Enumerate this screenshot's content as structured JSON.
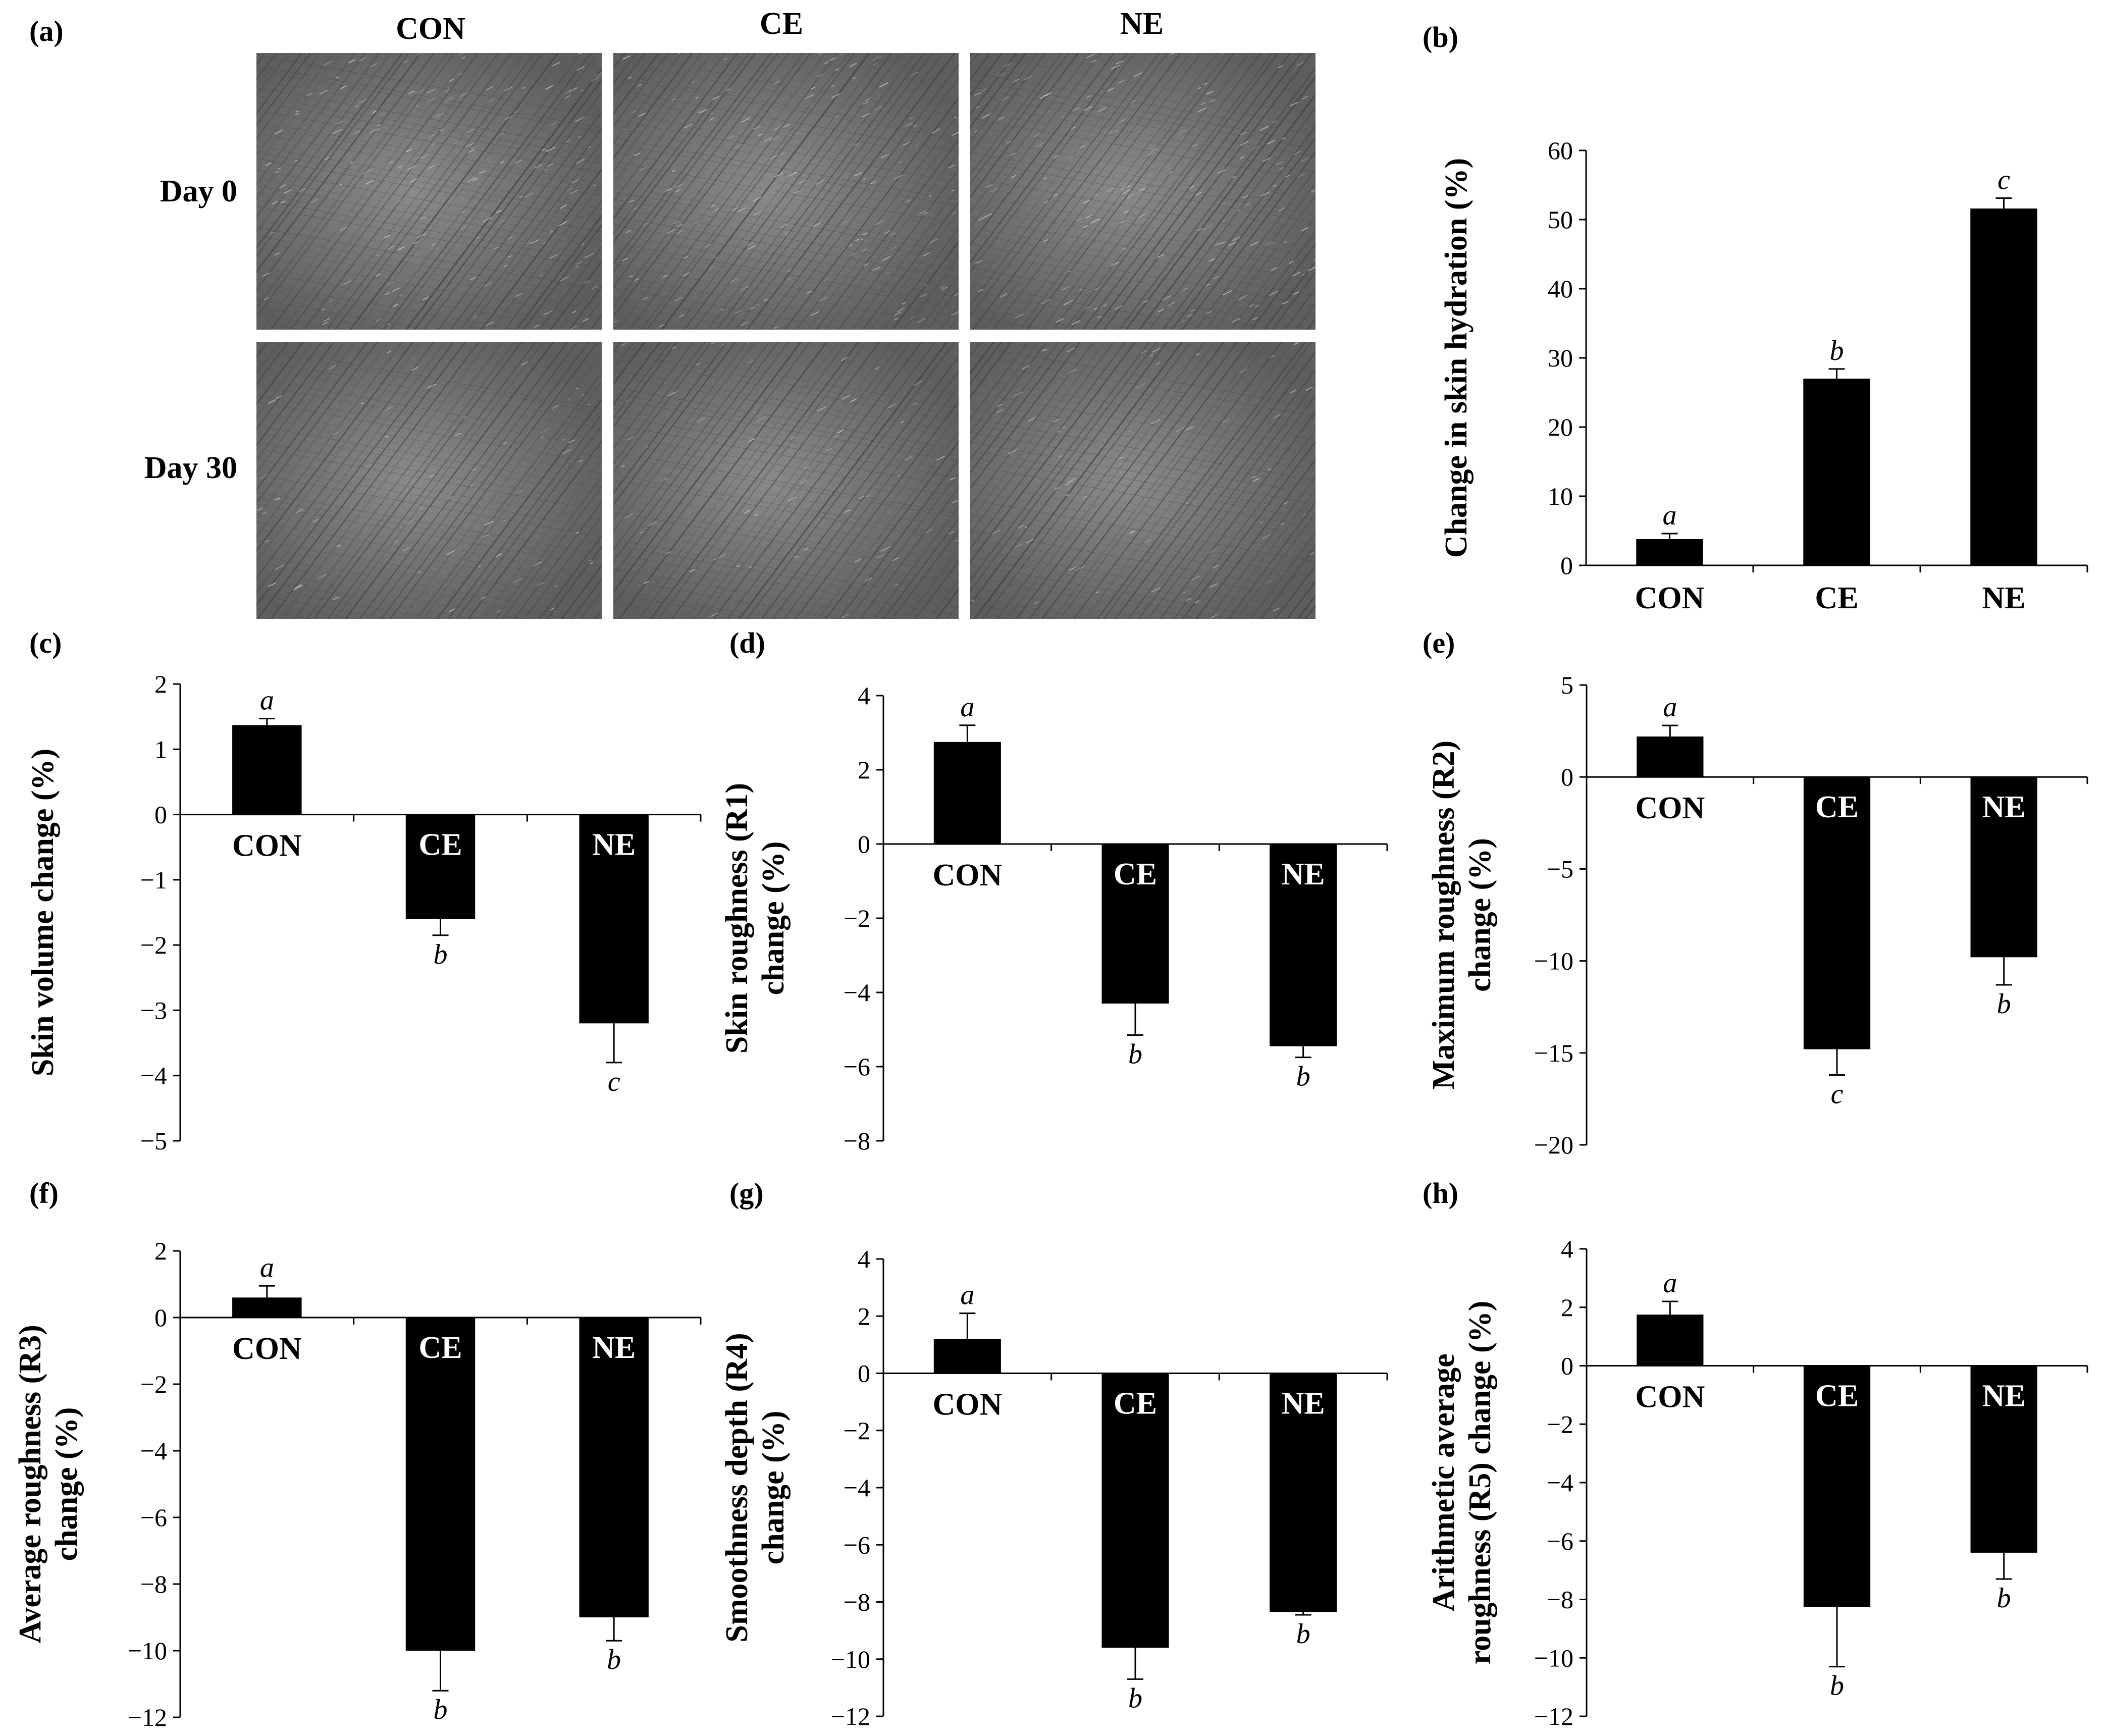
{
  "panel_a": {
    "letter": "(a)",
    "columns": [
      "CON",
      "CE",
      "NE"
    ],
    "rows": [
      "Day 0",
      "Day 30"
    ],
    "image_tone": "#6e6e6e"
  },
  "chart_data": [
    {
      "id": "b",
      "letter": "(b)",
      "type": "bar",
      "categories": [
        "CON",
        "CE",
        "NE"
      ],
      "values": [
        3.8,
        27,
        51.6
      ],
      "errors": [
        0.8,
        1.4,
        1.5
      ],
      "significance": [
        "a",
        "b",
        "c"
      ],
      "ylabel": [
        "Change in skin hydration (%)"
      ],
      "ylim": [
        0,
        60
      ],
      "yticks": [
        0,
        10,
        20,
        30,
        40,
        50,
        60
      ],
      "bar_color": "#000000"
    },
    {
      "id": "c",
      "letter": "(c)",
      "type": "bar",
      "categories": [
        "CON",
        "CE",
        "NE"
      ],
      "values": [
        1.37,
        -1.6,
        -3.2
      ],
      "errors": [
        0.1,
        0.25,
        0.6
      ],
      "significance": [
        "a",
        "b",
        "c"
      ],
      "ylabel": [
        "Skin volume change (%)"
      ],
      "ylim": [
        -5,
        2
      ],
      "yticks": [
        -5,
        -4,
        -3,
        -2,
        -1,
        0,
        1,
        2
      ],
      "bar_color": "#000000"
    },
    {
      "id": "d",
      "letter": "(d)",
      "type": "bar",
      "categories": [
        "CON",
        "CE",
        "NE"
      ],
      "values": [
        2.75,
        -4.3,
        -5.45
      ],
      "errors": [
        0.45,
        0.85,
        0.3
      ],
      "significance": [
        "a",
        "b",
        "b"
      ],
      "ylabel": [
        "Skin roughness (R1)",
        "change (%)"
      ],
      "ylim": [
        -8,
        4
      ],
      "yticks": [
        -8,
        -6,
        -4,
        -2,
        0,
        2,
        4
      ],
      "bar_color": "#000000"
    },
    {
      "id": "e",
      "letter": "(e)",
      "type": "bar",
      "categories": [
        "CON",
        "CE",
        "NE"
      ],
      "values": [
        2.2,
        -14.8,
        -9.8
      ],
      "errors": [
        0.6,
        1.4,
        1.5
      ],
      "significance": [
        "a",
        "c",
        "b"
      ],
      "ylabel": [
        "Maximum roughness (R2)",
        "change (%)"
      ],
      "ylim": [
        -20,
        5
      ],
      "yticks": [
        -20,
        -15,
        -10,
        -5,
        0,
        5
      ],
      "bar_color": "#000000"
    },
    {
      "id": "f",
      "letter": "(f)",
      "type": "bar",
      "categories": [
        "CON",
        "CE",
        "NE"
      ],
      "values": [
        0.6,
        -10,
        -9
      ],
      "errors": [
        0.35,
        1.2,
        0.7
      ],
      "significance": [
        "a",
        "b",
        "b"
      ],
      "ylabel": [
        "Average roughness (R3)",
        "change (%)"
      ],
      "ylim": [
        -12,
        2
      ],
      "yticks": [
        -12,
        -10,
        -8,
        -6,
        -4,
        -2,
        0,
        2
      ],
      "bar_color": "#000000"
    },
    {
      "id": "g",
      "letter": "(g)",
      "type": "bar",
      "categories": [
        "CON",
        "CE",
        "NE"
      ],
      "values": [
        1.2,
        -9.6,
        -8.35
      ],
      "errors": [
        0.9,
        1.1,
        0.1
      ],
      "significance": [
        "a",
        "b",
        "b"
      ],
      "ylabel": [
        "Smoothness depth (R4)",
        "change (%)"
      ],
      "ylim": [
        -12,
        4
      ],
      "yticks": [
        -12,
        -10,
        -8,
        -6,
        -4,
        -2,
        0,
        2,
        4
      ],
      "bar_color": "#000000"
    },
    {
      "id": "h",
      "letter": "(h)",
      "type": "bar",
      "categories": [
        "CON",
        "CE",
        "NE"
      ],
      "values": [
        1.75,
        -8.25,
        -6.4
      ],
      "errors": [
        0.45,
        2.05,
        0.9
      ],
      "significance": [
        "a",
        "b",
        "b"
      ],
      "ylabel": [
        "Arithmetic average",
        "roughness (R5) change (%)"
      ],
      "ylim": [
        -12,
        4
      ],
      "yticks": [
        -12,
        -10,
        -8,
        -6,
        -4,
        -2,
        0,
        2,
        4
      ],
      "bar_color": "#000000"
    }
  ]
}
